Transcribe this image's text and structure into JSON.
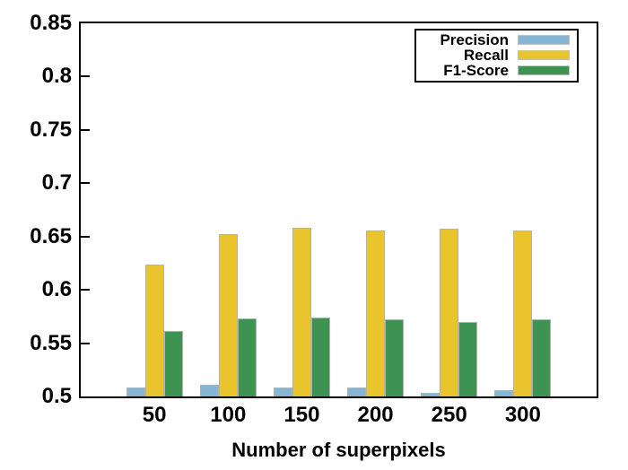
{
  "chart_data": {
    "type": "bar",
    "title": "",
    "xlabel": "Number of superpixels",
    "ylabel": "",
    "categories": [
      "50",
      "100",
      "150",
      "200",
      "250",
      "300"
    ],
    "series": [
      {
        "name": "Precision",
        "color": "#85b7d4",
        "values": [
          0.508,
          0.511,
          0.508,
          0.508,
          0.503,
          0.506
        ]
      },
      {
        "name": "Recall",
        "color": "#e9c42d",
        "values": [
          0.624,
          0.652,
          0.658,
          0.656,
          0.657,
          0.656
        ]
      },
      {
        "name": "F1-Score",
        "color": "#3f9352",
        "values": [
          0.561,
          0.573,
          0.574,
          0.572,
          0.57,
          0.572
        ]
      }
    ],
    "ylim": [
      0.5,
      0.85
    ],
    "yticks": [
      0.5,
      0.55,
      0.6,
      0.65,
      0.7,
      0.75,
      0.8,
      0.85
    ],
    "ytick_labels": [
      "0.5",
      "0.55",
      "0.6",
      "0.65",
      "0.7",
      "0.75",
      "0.8",
      "0.85"
    ],
    "legend_position": "top-right",
    "grid": false,
    "frame_color": "#000000",
    "bar_border_color": "#b2b2b2",
    "background_color": "#ffffff"
  }
}
